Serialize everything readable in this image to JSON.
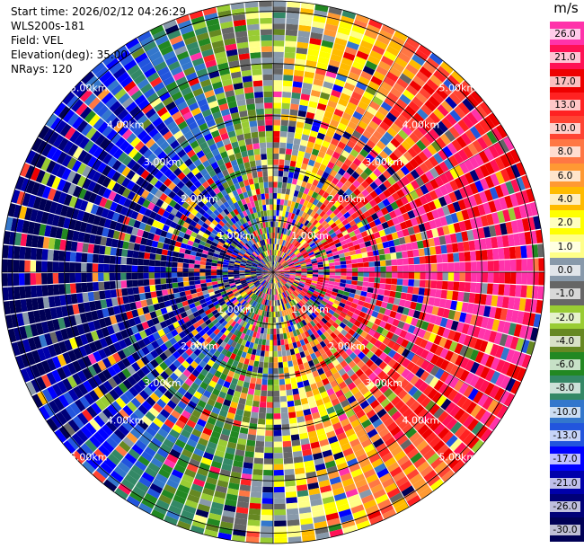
{
  "info": {
    "start_time": "Start time: 2026/02/12 04:26:29",
    "instrument": "WLS200s-181",
    "field": "Field: VEL",
    "elevation": "Elevation(deg): 35.00",
    "nrays": "NRays: 120"
  },
  "colorbar": {
    "unit": "m/s",
    "ticks": [
      "26.0",
      "21.0",
      "17.0",
      "13.0",
      "10.0",
      "8.0",
      "6.0",
      "4.0",
      "2.0",
      "1.0",
      "0.0",
      "-1.0",
      "-2.0",
      "-4.0",
      "-6.0",
      "-8.0",
      "-10.0",
      "-13.0",
      "-17.0",
      "-21.0",
      "-26.0",
      "-30.0"
    ],
    "colors": [
      "#ff33aa",
      "#ff1155",
      "#ee0000",
      "#ff2222",
      "#ff4433",
      "#ff7744",
      "#ff9933",
      "#ffbb00",
      "#ffff00",
      "#ffff88",
      "#8899aa",
      "#666666",
      "#99cc33",
      "#668822",
      "#228822",
      "#338866",
      "#3377cc",
      "#2255dd",
      "#0000ff",
      "#0000aa",
      "#000077",
      "#000055"
    ]
  },
  "chart_data": {
    "type": "heatmap",
    "projection": "polar PPI",
    "field": "VEL",
    "units": "m/s",
    "elevation_deg": 35.0,
    "n_rays": 120,
    "range_rings_km": [
      1,
      2,
      3,
      4,
      5
    ],
    "ring_labels": [
      "1.00km",
      "2.00km",
      "3.00km",
      "4.00km",
      "5.00km"
    ],
    "color_levels": [
      26,
      21,
      17,
      13,
      10,
      8,
      6,
      4,
      2,
      1,
      0,
      -1,
      -2,
      -4,
      -6,
      -8,
      -10,
      -13,
      -17,
      -21,
      -26,
      -30
    ]
  }
}
